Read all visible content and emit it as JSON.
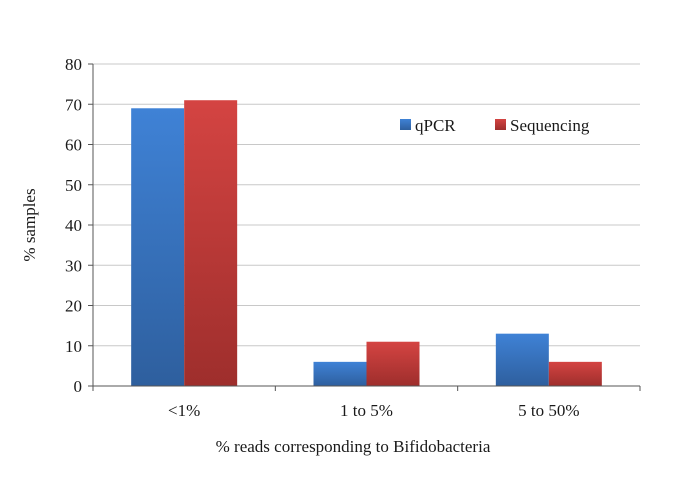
{
  "chart_data": {
    "type": "bar",
    "title": "",
    "xlabel": "% reads corresponding to Bifidobacteria",
    "ylabel": "% samples",
    "categories": [
      "<1%",
      "1 to 5%",
      "5 to 50%"
    ],
    "ylim": [
      0,
      80
    ],
    "yticks": [
      0,
      10,
      20,
      30,
      40,
      50,
      60,
      70,
      80
    ],
    "grid": true,
    "legend": "top-right",
    "series": [
      {
        "name": "qPCR",
        "values": [
          69,
          6,
          13
        ],
        "color": "#3a73c2"
      },
      {
        "name": "Sequencing",
        "values": [
          71,
          11,
          6
        ],
        "color": "#c23a38"
      }
    ]
  }
}
